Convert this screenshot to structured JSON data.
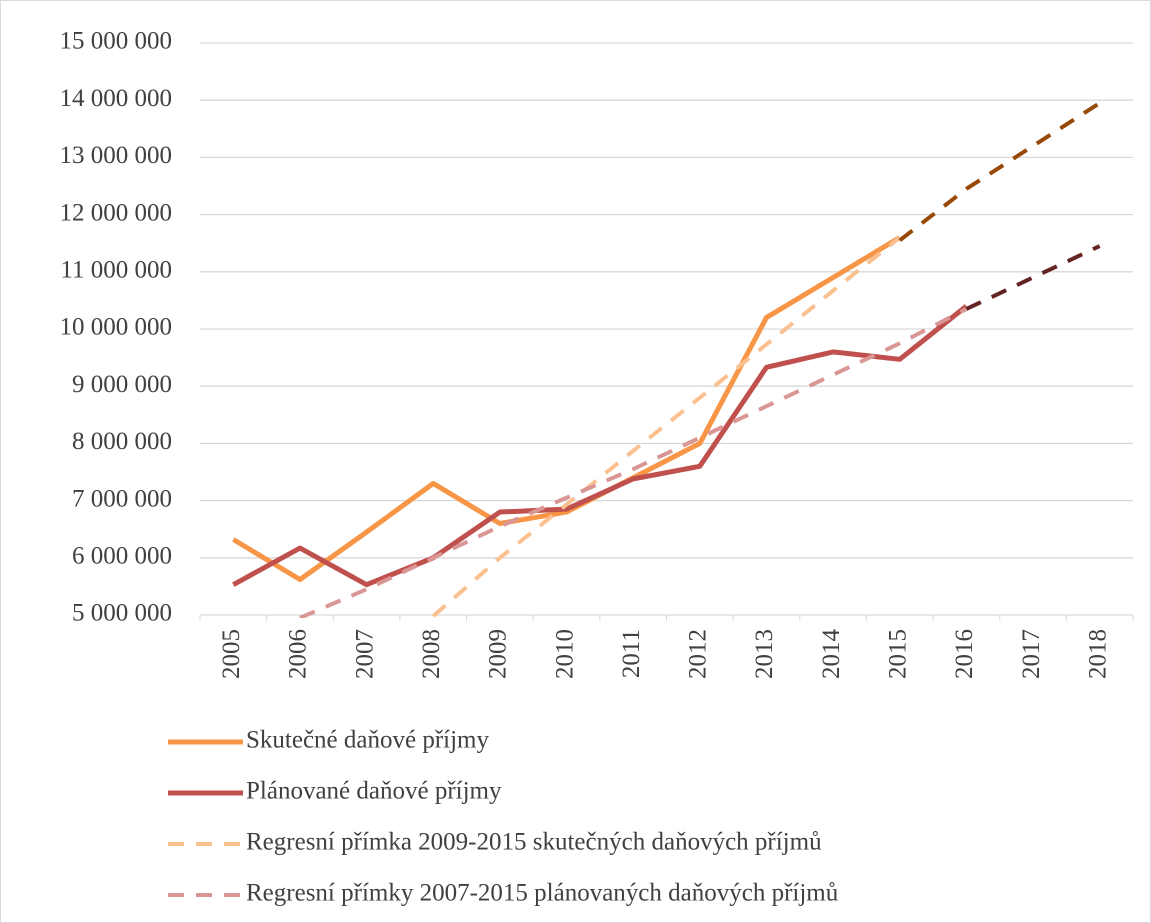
{
  "chart_data": {
    "type": "line",
    "categories": [
      "2005",
      "2006",
      "2007",
      "2008",
      "2009",
      "2010",
      "2011",
      "2012",
      "2013",
      "2014",
      "2015",
      "2016",
      "2017",
      "2018"
    ],
    "ylim": [
      5000000,
      15000000
    ],
    "yticks": [
      {
        "value": 5000000,
        "label": "5 000 000"
      },
      {
        "value": 6000000,
        "label": "6 000 000"
      },
      {
        "value": 7000000,
        "label": "7 000 000"
      },
      {
        "value": 8000000,
        "label": "8 000 000"
      },
      {
        "value": 9000000,
        "label": "9 000 000"
      },
      {
        "value": 10000000,
        "label": "10 000 000"
      },
      {
        "value": 11000000,
        "label": "11 000 000"
      },
      {
        "value": 12000000,
        "label": "12 000 000"
      },
      {
        "value": 13000000,
        "label": "13 000 000"
      },
      {
        "value": 14000000,
        "label": "14 000 000"
      },
      {
        "value": 15000000,
        "label": "15 000 000"
      }
    ],
    "grid": true,
    "legend": "bottom",
    "series": [
      {
        "name": "Skutečné daňové příjmy",
        "color": "#f79646",
        "dash": false,
        "values": [
          6320000,
          5620000,
          6450000,
          7300000,
          6600000,
          6800000,
          7400000,
          8000000,
          10200000,
          10900000,
          11600000,
          null,
          null,
          null
        ]
      },
      {
        "name": "Plánované daňové příjmy",
        "color": "#c0504d",
        "dash": false,
        "values": [
          5530000,
          6170000,
          5530000,
          6000000,
          6800000,
          6850000,
          7380000,
          7600000,
          9330000,
          9600000,
          9470000,
          10400000,
          null,
          null
        ]
      },
      {
        "name": "Regresní přímka 2009-2015 skutečných daňových příjmů",
        "color": "#fac090",
        "dash": true,
        "values": [
          null,
          null,
          null,
          4980000,
          6000000,
          6930000,
          7870000,
          8800000,
          9730000,
          10670000,
          11600000,
          null,
          null,
          null
        ]
      },
      {
        "name": "Regresní přímky  2007-2015 plánovaných daňových příjmů",
        "color": "#d99694",
        "dash": true,
        "values": [
          null,
          4950000,
          5450000,
          6000000,
          6550000,
          7050000,
          7550000,
          8100000,
          8650000,
          9200000,
          9750000,
          10350000,
          null,
          null
        ]
      },
      {
        "color": "#984807",
        "dash": true,
        "values": [
          null,
          null,
          null,
          null,
          null,
          null,
          null,
          null,
          null,
          null,
          11550000,
          12450000,
          13200000,
          13950000
        ]
      },
      {
        "color": "#632523",
        "dash": true,
        "values": [
          null,
          null,
          null,
          null,
          null,
          null,
          null,
          null,
          null,
          null,
          null,
          10350000,
          10900000,
          11450000
        ]
      }
    ]
  }
}
